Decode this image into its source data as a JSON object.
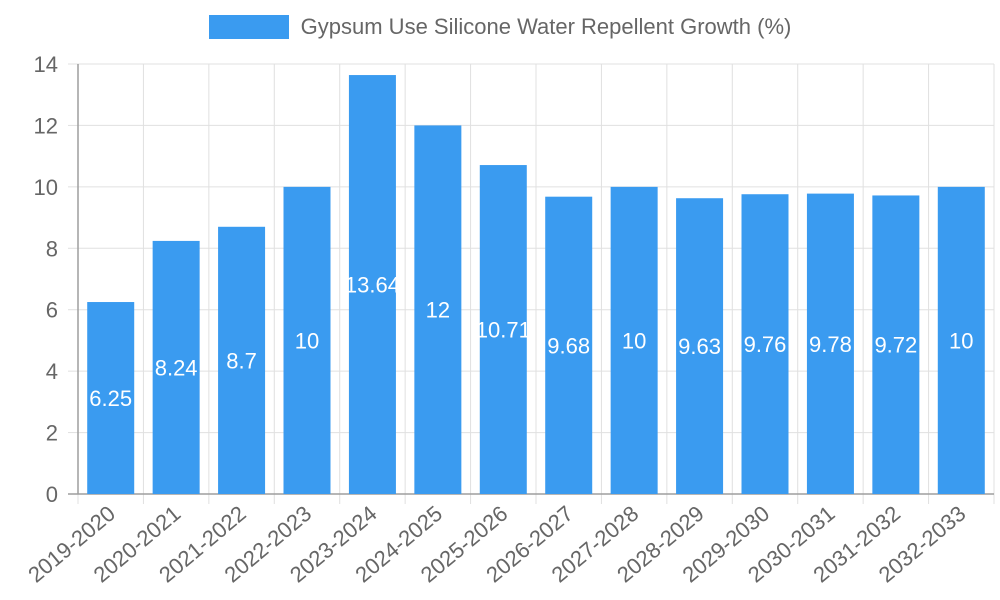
{
  "colors": {
    "bar": "#3a9bf0",
    "grid": "#e0e0e0",
    "axis": "#9e9e9e",
    "tick_text": "#666666",
    "label_text": "#ffffff"
  },
  "chart_data": {
    "type": "bar",
    "title": "",
    "xlabel": "",
    "ylabel": "",
    "ylim": [
      0,
      14
    ],
    "y_ticks": [
      0,
      2,
      4,
      6,
      8,
      10,
      12,
      14
    ],
    "grid": true,
    "legend_position": "top-center",
    "categories": [
      "2019-2020",
      "2020-2021",
      "2021-2022",
      "2022-2023",
      "2023-2024",
      "2024-2025",
      "2025-2026",
      "2026-2027",
      "2027-2028",
      "2028-2029",
      "2029-2030",
      "2030-2031",
      "2031-2032",
      "2032-2033"
    ],
    "series": [
      {
        "name": "Gypsum Use Silicone Water Repellent Growth (%)",
        "values": [
          6.25,
          8.24,
          8.7,
          10,
          13.64,
          12,
          10.71,
          9.68,
          10,
          9.63,
          9.76,
          9.78,
          9.72,
          10
        ],
        "labels": [
          "6.25",
          "8.24",
          "8.7",
          "10",
          "13.64",
          "12",
          "10.71",
          "9.68",
          "10",
          "9.63",
          "9.76",
          "9.78",
          "9.72",
          "10"
        ]
      }
    ]
  }
}
